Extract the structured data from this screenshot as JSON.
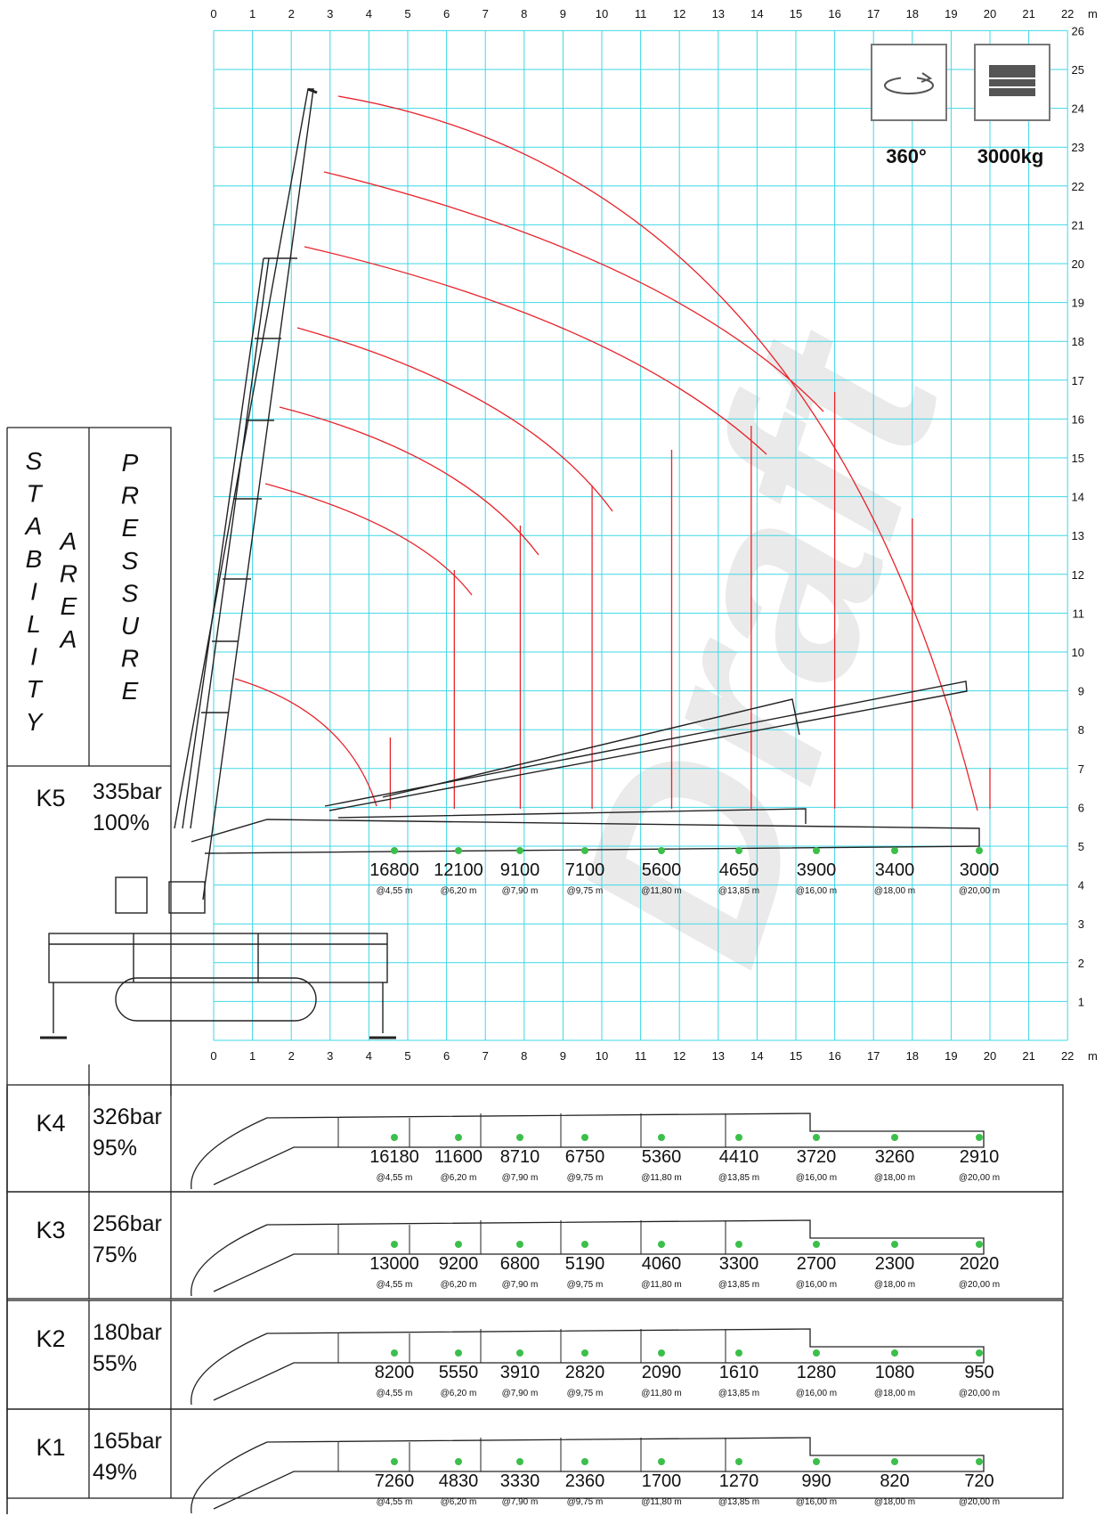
{
  "axis": {
    "x_ticks": [
      "0",
      "1",
      "2",
      "3",
      "4",
      "5",
      "6",
      "7",
      "8",
      "9",
      "10",
      "11",
      "12",
      "13",
      "14",
      "15",
      "16",
      "17",
      "18",
      "19",
      "20",
      "21",
      "22"
    ],
    "y_ticks": [
      "1",
      "2",
      "3",
      "4",
      "5",
      "6",
      "7",
      "8",
      "9",
      "10",
      "11",
      "12",
      "13",
      "14",
      "15",
      "16",
      "17",
      "18",
      "19",
      "20",
      "21",
      "22",
      "23",
      "24",
      "25",
      "26"
    ],
    "unit": "m",
    "grid_color": "#3fd7e6",
    "curve_color": "#e8232a"
  },
  "specs": {
    "rotation_label": "360°",
    "capacity_label": "3000kg",
    "rotation_icon": "rotation-icon",
    "weight_icon": "counterweight-icon"
  },
  "watermark": "Draft",
  "labels": {
    "stability": [
      "S",
      "T",
      "A",
      "B",
      "I",
      "L",
      "I",
      "T",
      "Y"
    ],
    "area": [
      "A",
      "R",
      "E",
      "A"
    ],
    "pressure": [
      "P",
      "R",
      "E",
      "S",
      "S",
      "U",
      "R",
      "E"
    ]
  },
  "radii": [
    "@4,55 m",
    "@6,20 m",
    "@7,90 m",
    "@9,75 m",
    "@11,80 m",
    "@13,85 m",
    "@16,00 m",
    "@18,00 m",
    "@20,00 m"
  ],
  "radius_values_m": [
    4.55,
    6.2,
    7.9,
    9.75,
    11.8,
    13.85,
    16.0,
    18.0,
    20.0
  ],
  "rows": [
    {
      "id": "K5",
      "pressure": "335bar",
      "percent": "100%",
      "loads": [
        "16800",
        "12100",
        "9100",
        "7100",
        "5600",
        "4650",
        "3900",
        "3400",
        "3000"
      ]
    },
    {
      "id": "K4",
      "pressure": "326bar",
      "percent": "95%",
      "loads": [
        "16180",
        "11600",
        "8710",
        "6750",
        "5360",
        "4410",
        "3720",
        "3260",
        "2910"
      ]
    },
    {
      "id": "K3",
      "pressure": "256bar",
      "percent": "75%",
      "loads": [
        "13000",
        "9200",
        "6800",
        "5190",
        "4060",
        "3300",
        "2700",
        "2300",
        "2020"
      ]
    },
    {
      "id": "K2",
      "pressure": "180bar",
      "percent": "55%",
      "loads": [
        "8200",
        "5550",
        "3910",
        "2820",
        "2090",
        "1610",
        "1280",
        "1080",
        "950"
      ]
    },
    {
      "id": "K1",
      "pressure": "165bar",
      "percent": "49%",
      "loads": [
        "7260",
        "4830",
        "3330",
        "2360",
        "1700",
        "1270",
        "990",
        "820",
        "720"
      ]
    }
  ]
}
